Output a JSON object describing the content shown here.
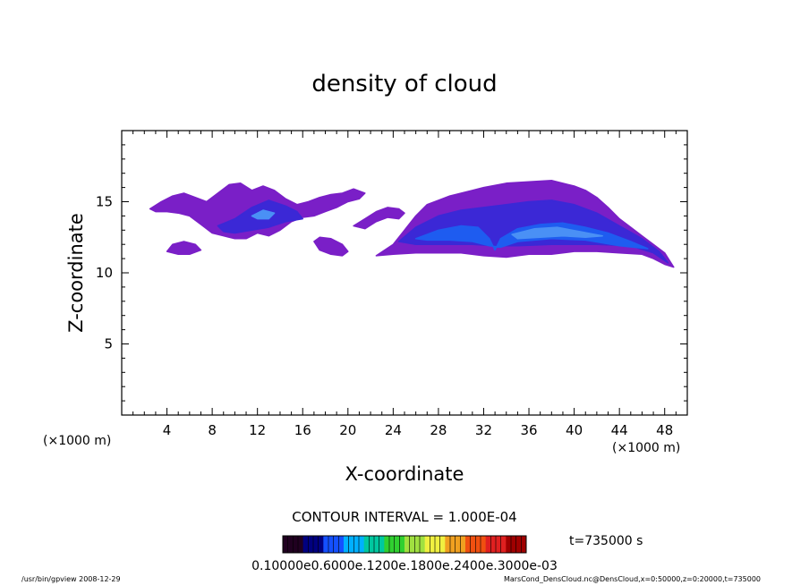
{
  "chart_data": {
    "type": "heatmap",
    "title": "density of cloud",
    "xlabel": "X-coordinate",
    "ylabel": "Z-coordinate",
    "x_unit_left": "(×1000 m)",
    "x_unit_right": "(×1000 m)",
    "xlim": [
      0,
      50
    ],
    "ylim": [
      0,
      20
    ],
    "x_ticks": [
      4,
      8,
      12,
      16,
      20,
      24,
      28,
      32,
      36,
      40,
      44,
      48
    ],
    "y_ticks": [
      5,
      10,
      15
    ],
    "cloud_regions": [
      {
        "level": "low",
        "points": [
          [
            2.5,
            14.5
          ],
          [
            3.5,
            15.0
          ],
          [
            4.5,
            15.4
          ],
          [
            5.5,
            15.6
          ],
          [
            6.5,
            15.3
          ],
          [
            7.5,
            15.0
          ],
          [
            8.5,
            15.6
          ],
          [
            9.5,
            16.2
          ],
          [
            10.5,
            16.3
          ],
          [
            11.5,
            15.8
          ],
          [
            12.5,
            16.1
          ],
          [
            13.5,
            15.8
          ],
          [
            14.5,
            15.2
          ],
          [
            15.5,
            14.8
          ],
          [
            16.5,
            15.0
          ],
          [
            17.5,
            15.3
          ],
          [
            18.5,
            15.5
          ],
          [
            19.5,
            15.6
          ],
          [
            20.5,
            15.9
          ],
          [
            21.5,
            15.6
          ],
          [
            21.0,
            15.2
          ],
          [
            20.0,
            15.0
          ],
          [
            19.0,
            14.6
          ],
          [
            18.0,
            14.3
          ],
          [
            17.0,
            14.0
          ],
          [
            16.0,
            13.9
          ],
          [
            15.0,
            13.6
          ],
          [
            14.0,
            13.0
          ],
          [
            13.0,
            12.6
          ],
          [
            12.0,
            12.8
          ],
          [
            11.0,
            12.4
          ],
          [
            10.0,
            12.4
          ],
          [
            9.0,
            12.6
          ],
          [
            8.0,
            12.8
          ],
          [
            7.0,
            13.4
          ],
          [
            6.0,
            14.0
          ],
          [
            5.0,
            14.2
          ],
          [
            4.0,
            14.3
          ],
          [
            3.0,
            14.3
          ]
        ]
      },
      {
        "level": "low",
        "points": [
          [
            4.0,
            11.5
          ],
          [
            4.5,
            12.0
          ],
          [
            5.5,
            12.2
          ],
          [
            6.5,
            12.0
          ],
          [
            7.0,
            11.6
          ],
          [
            6.0,
            11.3
          ],
          [
            5.0,
            11.3
          ]
        ]
      },
      {
        "level": "low",
        "points": [
          [
            17.0,
            12.2
          ],
          [
            17.5,
            12.5
          ],
          [
            18.5,
            12.4
          ],
          [
            19.5,
            12.0
          ],
          [
            20.0,
            11.5
          ],
          [
            19.5,
            11.2
          ],
          [
            18.5,
            11.3
          ],
          [
            17.5,
            11.6
          ]
        ]
      },
      {
        "level": "low",
        "points": [
          [
            20.5,
            13.3
          ],
          [
            21.5,
            13.8
          ],
          [
            22.5,
            14.3
          ],
          [
            23.5,
            14.6
          ],
          [
            24.5,
            14.5
          ],
          [
            25.0,
            14.2
          ],
          [
            24.5,
            13.8
          ],
          [
            23.5,
            13.9
          ],
          [
            22.5,
            13.6
          ],
          [
            21.5,
            13.1
          ]
        ]
      },
      {
        "level": "low",
        "points": [
          [
            22.5,
            11.2
          ],
          [
            24.0,
            12.0
          ],
          [
            25.0,
            13.0
          ],
          [
            26.0,
            14.0
          ],
          [
            27.0,
            14.8
          ],
          [
            28.0,
            15.1
          ],
          [
            29.0,
            15.4
          ],
          [
            30.0,
            15.6
          ],
          [
            31.0,
            15.8
          ],
          [
            32.0,
            16.0
          ],
          [
            34.0,
            16.3
          ],
          [
            36.0,
            16.4
          ],
          [
            38.0,
            16.5
          ],
          [
            40.0,
            16.1
          ],
          [
            41.0,
            15.8
          ],
          [
            42.0,
            15.3
          ],
          [
            43.0,
            14.6
          ],
          [
            44.0,
            13.8
          ],
          [
            45.0,
            13.2
          ],
          [
            46.0,
            12.6
          ],
          [
            47.0,
            12.0
          ],
          [
            48.0,
            11.4
          ],
          [
            48.8,
            10.4
          ],
          [
            48.0,
            10.6
          ],
          [
            47.0,
            11.0
          ],
          [
            46.0,
            11.3
          ],
          [
            44.0,
            11.4
          ],
          [
            42.0,
            11.5
          ],
          [
            40.0,
            11.5
          ],
          [
            38.0,
            11.3
          ],
          [
            36.0,
            11.3
          ],
          [
            34.0,
            11.1
          ],
          [
            32.0,
            11.2
          ],
          [
            30.0,
            11.4
          ],
          [
            28.0,
            11.4
          ],
          [
            26.0,
            11.4
          ],
          [
            24.0,
            11.3
          ]
        ]
      },
      {
        "level": "mid",
        "points": [
          [
            8.5,
            13.3
          ],
          [
            10.0,
            13.8
          ],
          [
            11.5,
            14.6
          ],
          [
            13.0,
            15.1
          ],
          [
            14.5,
            14.7
          ],
          [
            15.5,
            14.3
          ],
          [
            16.0,
            13.8
          ],
          [
            14.5,
            13.6
          ],
          [
            13.0,
            13.2
          ],
          [
            11.5,
            13.0
          ],
          [
            10.0,
            12.8
          ],
          [
            9.0,
            12.9
          ]
        ]
      },
      {
        "level": "mid",
        "points": [
          [
            24.5,
            12.2
          ],
          [
            26.0,
            13.2
          ],
          [
            28.0,
            14.0
          ],
          [
            30.0,
            14.4
          ],
          [
            32.0,
            14.6
          ],
          [
            34.0,
            14.8
          ],
          [
            36.0,
            15.0
          ],
          [
            38.0,
            15.1
          ],
          [
            40.0,
            14.8
          ],
          [
            42.0,
            14.2
          ],
          [
            44.0,
            13.3
          ],
          [
            46.0,
            12.4
          ],
          [
            47.5,
            11.5
          ],
          [
            48.3,
            10.7
          ],
          [
            47.0,
            11.4
          ],
          [
            45.0,
            11.9
          ],
          [
            42.0,
            12.0
          ],
          [
            38.0,
            12.0
          ],
          [
            35.0,
            11.9
          ],
          [
            33.0,
            11.9
          ],
          [
            31.0,
            12.0
          ],
          [
            28.0,
            12.0
          ],
          [
            26.0,
            12.0
          ]
        ]
      },
      {
        "level": "high",
        "points": [
          [
            26.0,
            12.4
          ],
          [
            28.0,
            13.0
          ],
          [
            30.0,
            13.3
          ],
          [
            31.5,
            13.2
          ],
          [
            32.5,
            12.4
          ],
          [
            33.0,
            11.6
          ],
          [
            33.5,
            12.4
          ],
          [
            35.0,
            13.1
          ],
          [
            37.0,
            13.4
          ],
          [
            39.0,
            13.5
          ],
          [
            41.0,
            13.2
          ],
          [
            43.0,
            12.8
          ],
          [
            45.0,
            12.2
          ],
          [
            46.5,
            11.7
          ],
          [
            44.0,
            11.9
          ],
          [
            41.0,
            12.3
          ],
          [
            38.0,
            12.4
          ],
          [
            35.0,
            12.2
          ],
          [
            33.5,
            11.8
          ],
          [
            32.5,
            11.9
          ],
          [
            31.0,
            12.2
          ],
          [
            29.0,
            12.3
          ],
          [
            27.0,
            12.3
          ]
        ]
      },
      {
        "level": "peak",
        "points": [
          [
            34.5,
            12.7
          ],
          [
            36.5,
            13.1
          ],
          [
            38.5,
            13.2
          ],
          [
            40.5,
            12.9
          ],
          [
            42.5,
            12.6
          ],
          [
            41.0,
            12.5
          ],
          [
            39.0,
            12.6
          ],
          [
            37.0,
            12.5
          ],
          [
            35.0,
            12.4
          ]
        ]
      },
      {
        "level": "peak",
        "points": [
          [
            11.5,
            14.0
          ],
          [
            12.5,
            14.4
          ],
          [
            13.5,
            14.2
          ],
          [
            13.0,
            13.8
          ],
          [
            12.0,
            13.8
          ]
        ]
      }
    ],
    "level_colors": {
      "low": "#7a1fc7",
      "mid": "#3b28d6",
      "high": "#1e5cf0",
      "peak": "#4a90f5"
    },
    "contour_interval_label": "CONTOUR INTERVAL = 1.000E-04",
    "colorbar_labels": "0.10000e0.6000e.1200e.1800e.2400e.3000e-03",
    "colorbar_colors": [
      "#200020",
      "#000080",
      "#1450ff",
      "#00b0ff",
      "#00c8a0",
      "#30d030",
      "#a0e040",
      "#f0f040",
      "#f0a020",
      "#f05010",
      "#e02020",
      "#a00000"
    ],
    "time_label": "t=735000 s",
    "footer_left": "/usr/bin/gpview   2008-12-29",
    "footer_right": "MarsCond_DensCloud.nc@DensCloud,x=0:50000,z=0:20000,t=735000"
  }
}
